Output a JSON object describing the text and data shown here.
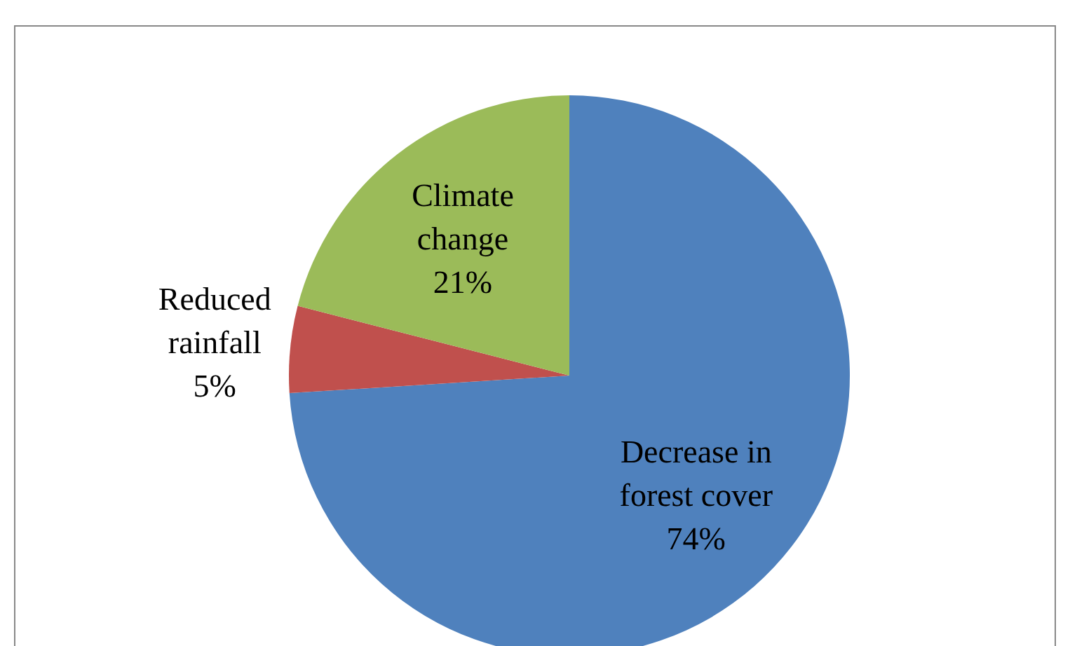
{
  "chart_data": {
    "type": "pie",
    "categories": [
      "Decrease in forest cover",
      "Reduced rainfall",
      "Climate change"
    ],
    "values": [
      74,
      5,
      21
    ],
    "colors": [
      "#4f81bd",
      "#c0504d",
      "#9bbb59"
    ],
    "value_labels": [
      "74%",
      "5%",
      "21%"
    ],
    "legend": false
  }
}
